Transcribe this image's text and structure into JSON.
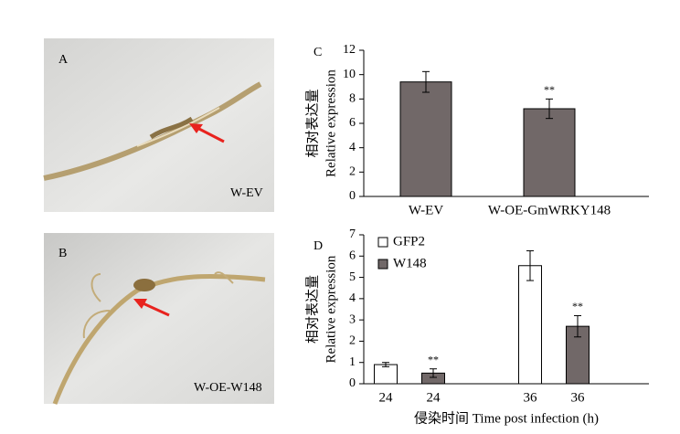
{
  "panels": [
    {
      "label": "A",
      "caption": "W-EV"
    },
    {
      "label": "B",
      "caption": "W-OE-W148"
    }
  ],
  "chart_data": [
    {
      "type": "bar",
      "label": "C",
      "ylabel": [
        "相对表达量",
        "Relative expression"
      ],
      "categories": [
        "W-EV",
        "W-OE-GmWRKY148"
      ],
      "series": [
        {
          "name": null,
          "color": "#716868",
          "values": [
            9.4,
            7.2
          ],
          "errors": [
            0.85,
            0.8
          ],
          "annotations": [
            null,
            "**"
          ]
        }
      ],
      "ylim": [
        0,
        12
      ],
      "yticks": [
        0,
        2,
        4,
        6,
        8,
        10,
        12
      ]
    },
    {
      "type": "bar",
      "label": "D",
      "ylabel": [
        "相对表达量",
        "Relative expression"
      ],
      "xlabel": "侵染时间 Time post infection (h)",
      "categories": [
        "24",
        "24",
        "36",
        "36"
      ],
      "series": [
        {
          "name": "GFP2",
          "color": "#ffffff",
          "values": [
            0.9,
            null,
            5.55,
            null
          ],
          "errors": [
            0.1,
            null,
            0.7,
            null
          ],
          "annotations": [
            null,
            null,
            null,
            null
          ]
        },
        {
          "name": "W148",
          "color": "#716868",
          "values": [
            null,
            0.5,
            null,
            2.7
          ],
          "errors": [
            null,
            0.2,
            null,
            0.5
          ],
          "annotations": [
            null,
            "**",
            null,
            "**"
          ]
        }
      ],
      "ylim": [
        0,
        7
      ],
      "yticks": [
        0,
        1,
        2,
        3,
        4,
        5,
        6,
        7
      ],
      "legend": "top-left"
    }
  ]
}
